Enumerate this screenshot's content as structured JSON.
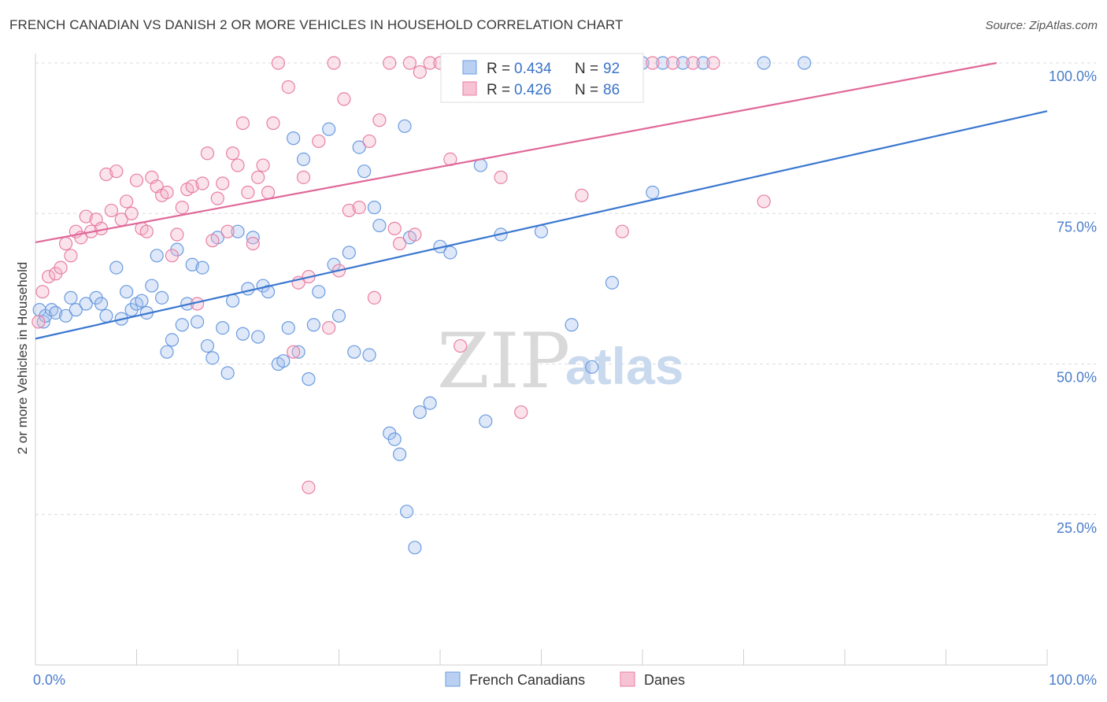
{
  "title": "FRENCH CANADIAN VS DANISH 2 OR MORE VEHICLES IN HOUSEHOLD CORRELATION CHART",
  "source": "Source: ZipAtlas.com",
  "watermark": {
    "zip": "ZIP",
    "atlas": "atlas"
  },
  "chart_data": {
    "type": "scatter",
    "ylabel": "2 or more Vehicles in Household",
    "xlabel": "",
    "xlim": [
      0,
      100
    ],
    "ylim": [
      0,
      105
    ],
    "x_tick_labels": [
      "0.0%",
      "100.0%"
    ],
    "y_tick_labels": [
      "25.0%",
      "50.0%",
      "75.0%",
      "100.0%"
    ],
    "y_ticks": [
      25,
      50,
      75,
      100
    ],
    "grid": true,
    "legend": [
      {
        "r_label": "R = ",
        "r": "0.434",
        "n_label": "N = ",
        "n": "92",
        "color": "#6a9be0",
        "fill": "#b9d0f2"
      },
      {
        "r_label": "R = ",
        "r": "0.426",
        "n_label": "N = ",
        "n": "86",
        "color": "#e87fa3",
        "fill": "#f7c2d4"
      }
    ],
    "series": [
      {
        "name": "French Canadians",
        "color": "#6a9be0",
        "fill": "rgba(160,190,235,0.35)",
        "trend_color": "#3a77d0",
        "trend": [
          [
            0,
            54.2
          ],
          [
            100,
            92.0
          ]
        ],
        "points": [
          [
            0.4,
            59
          ],
          [
            0.8,
            57
          ],
          [
            1,
            58
          ],
          [
            1.6,
            59
          ],
          [
            2,
            58.5
          ],
          [
            3,
            58
          ],
          [
            3.5,
            61
          ],
          [
            4,
            59
          ],
          [
            5,
            60
          ],
          [
            6,
            61
          ],
          [
            6.5,
            60
          ],
          [
            7,
            58
          ],
          [
            8,
            66
          ],
          [
            8.5,
            57.5
          ],
          [
            9,
            62
          ],
          [
            9.5,
            59
          ],
          [
            10,
            60
          ],
          [
            10.5,
            60.5
          ],
          [
            11,
            58.5
          ],
          [
            11.5,
            63
          ],
          [
            12,
            68
          ],
          [
            12.5,
            61
          ],
          [
            13,
            52
          ],
          [
            13.5,
            54
          ],
          [
            14,
            69
          ],
          [
            14.5,
            56.5
          ],
          [
            15,
            60
          ],
          [
            15.5,
            66.5
          ],
          [
            16,
            57
          ],
          [
            16.5,
            66
          ],
          [
            17,
            53
          ],
          [
            17.5,
            51
          ],
          [
            18,
            71
          ],
          [
            18.5,
            56
          ],
          [
            19,
            48.5
          ],
          [
            19.5,
            60.5
          ],
          [
            20,
            72
          ],
          [
            20.5,
            55
          ],
          [
            21,
            62.5
          ],
          [
            21.5,
            71
          ],
          [
            22,
            54.5
          ],
          [
            22.5,
            63
          ],
          [
            23,
            62
          ],
          [
            24,
            50
          ],
          [
            24.5,
            50.5
          ],
          [
            25,
            56
          ],
          [
            25.5,
            87.5
          ],
          [
            26,
            52
          ],
          [
            26.5,
            84
          ],
          [
            27,
            47.5
          ],
          [
            27.5,
            56.5
          ],
          [
            28,
            62
          ],
          [
            29,
            89
          ],
          [
            29.5,
            66.5
          ],
          [
            30,
            58
          ],
          [
            31,
            68.5
          ],
          [
            31.5,
            52
          ],
          [
            32,
            86
          ],
          [
            32.5,
            82
          ],
          [
            33,
            51.5
          ],
          [
            33.5,
            76
          ],
          [
            34,
            73
          ],
          [
            35,
            38.5
          ],
          [
            35.5,
            37.5
          ],
          [
            36,
            35
          ],
          [
            36.5,
            89.5
          ],
          [
            36.7,
            25.5
          ],
          [
            37,
            71
          ],
          [
            37.5,
            19.5
          ],
          [
            38,
            42
          ],
          [
            39,
            43.5
          ],
          [
            40,
            69.5
          ],
          [
            41,
            68.5
          ],
          [
            44,
            83
          ],
          [
            44.5,
            40.5
          ],
          [
            46,
            71.5
          ],
          [
            50,
            72
          ],
          [
            53,
            56.5
          ],
          [
            55,
            49.5
          ],
          [
            57,
            63.5
          ],
          [
            61,
            78.5
          ],
          [
            48,
            100
          ],
          [
            50,
            100
          ],
          [
            52,
            100
          ],
          [
            54,
            100
          ],
          [
            56,
            100
          ],
          [
            58,
            100
          ],
          [
            60,
            100
          ],
          [
            62,
            100
          ],
          [
            64,
            100
          ],
          [
            66,
            100
          ],
          [
            72,
            100
          ],
          [
            76,
            100
          ]
        ]
      },
      {
        "name": "Danes",
        "color": "#e87fa3",
        "fill": "rgba(244,175,200,0.35)",
        "trend_color": "#e0689a",
        "trend": [
          [
            0,
            70.2
          ],
          [
            95,
            100
          ]
        ],
        "points": [
          [
            0.3,
            57
          ],
          [
            0.7,
            62
          ],
          [
            1.3,
            64.5
          ],
          [
            2,
            65
          ],
          [
            2.5,
            66
          ],
          [
            3,
            70
          ],
          [
            3.5,
            68
          ],
          [
            4,
            72
          ],
          [
            4.5,
            71
          ],
          [
            5,
            74.5
          ],
          [
            5.5,
            72
          ],
          [
            6,
            74
          ],
          [
            6.5,
            72.5
          ],
          [
            7,
            81.5
          ],
          [
            7.5,
            75.5
          ],
          [
            8,
            82
          ],
          [
            8.5,
            74
          ],
          [
            9,
            77
          ],
          [
            9.5,
            75
          ],
          [
            10,
            80.5
          ],
          [
            10.5,
            72.5
          ],
          [
            11,
            72
          ],
          [
            11.5,
            81
          ],
          [
            12,
            79.5
          ],
          [
            12.5,
            78
          ],
          [
            13,
            78.5
          ],
          [
            13.5,
            68
          ],
          [
            14,
            71.5
          ],
          [
            14.5,
            76
          ],
          [
            15,
            79
          ],
          [
            15.5,
            79.5
          ],
          [
            16,
            60
          ],
          [
            16.5,
            80
          ],
          [
            17,
            85
          ],
          [
            17.5,
            70.5
          ],
          [
            18,
            77.5
          ],
          [
            18.5,
            80
          ],
          [
            19,
            72
          ],
          [
            19.5,
            85
          ],
          [
            20,
            83
          ],
          [
            20.5,
            90
          ],
          [
            21,
            78.5
          ],
          [
            21.5,
            70
          ],
          [
            22,
            81
          ],
          [
            22.5,
            83
          ],
          [
            23,
            78.5
          ],
          [
            23.5,
            90
          ],
          [
            24,
            100
          ],
          [
            25,
            96
          ],
          [
            25.5,
            52
          ],
          [
            26,
            63.5
          ],
          [
            26.5,
            81
          ],
          [
            27,
            64.5
          ],
          [
            28,
            87
          ],
          [
            29,
            56
          ],
          [
            29.5,
            100
          ],
          [
            30,
            65.5
          ],
          [
            30.5,
            94
          ],
          [
            31,
            75.5
          ],
          [
            32,
            76
          ],
          [
            33,
            87
          ],
          [
            33.5,
            61
          ],
          [
            34,
            90.5
          ],
          [
            35,
            100
          ],
          [
            35.5,
            72.5
          ],
          [
            36,
            70
          ],
          [
            37,
            100
          ],
          [
            37.5,
            71.5
          ],
          [
            38,
            98.5
          ],
          [
            39,
            100
          ],
          [
            40,
            100
          ],
          [
            41,
            84
          ],
          [
            42,
            53
          ],
          [
            43,
            100
          ],
          [
            44,
            100
          ],
          [
            45,
            100
          ],
          [
            46,
            81
          ],
          [
            48,
            42
          ],
          [
            50,
            100
          ],
          [
            53,
            100
          ],
          [
            54,
            78
          ],
          [
            58,
            72
          ],
          [
            61,
            100
          ],
          [
            63,
            100
          ],
          [
            65,
            100
          ],
          [
            67,
            100
          ],
          [
            72,
            77
          ],
          [
            27,
            29.5
          ]
        ]
      }
    ]
  },
  "bottom_legend": [
    "French Canadians",
    "Danes"
  ]
}
